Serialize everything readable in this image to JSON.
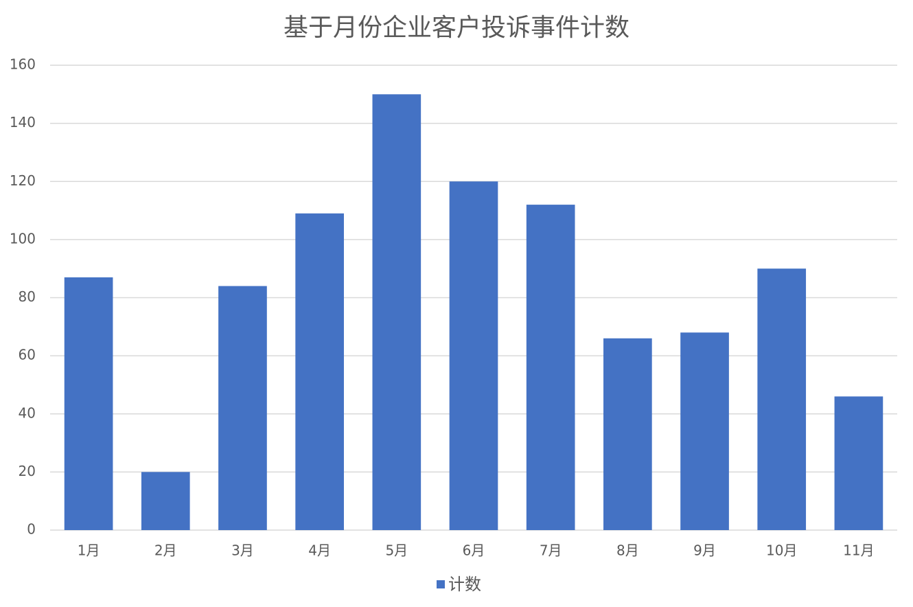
{
  "chart_data": {
    "type": "bar",
    "title": "基于月份企业客户投诉事件计数",
    "categories": [
      "1月",
      "2月",
      "3月",
      "4月",
      "5月",
      "6月",
      "7月",
      "8月",
      "9月",
      "10月",
      "11月"
    ],
    "series": [
      {
        "name": "计数",
        "color": "#4472c4",
        "values": [
          87,
          20,
          84,
          109,
          150,
          120,
          112,
          66,
          68,
          90,
          46
        ]
      }
    ],
    "ylim": [
      0,
      160
    ],
    "yticks": [
      0,
      20,
      40,
      60,
      80,
      100,
      120,
      140,
      160
    ],
    "grid": true,
    "legend": "bottom"
  }
}
